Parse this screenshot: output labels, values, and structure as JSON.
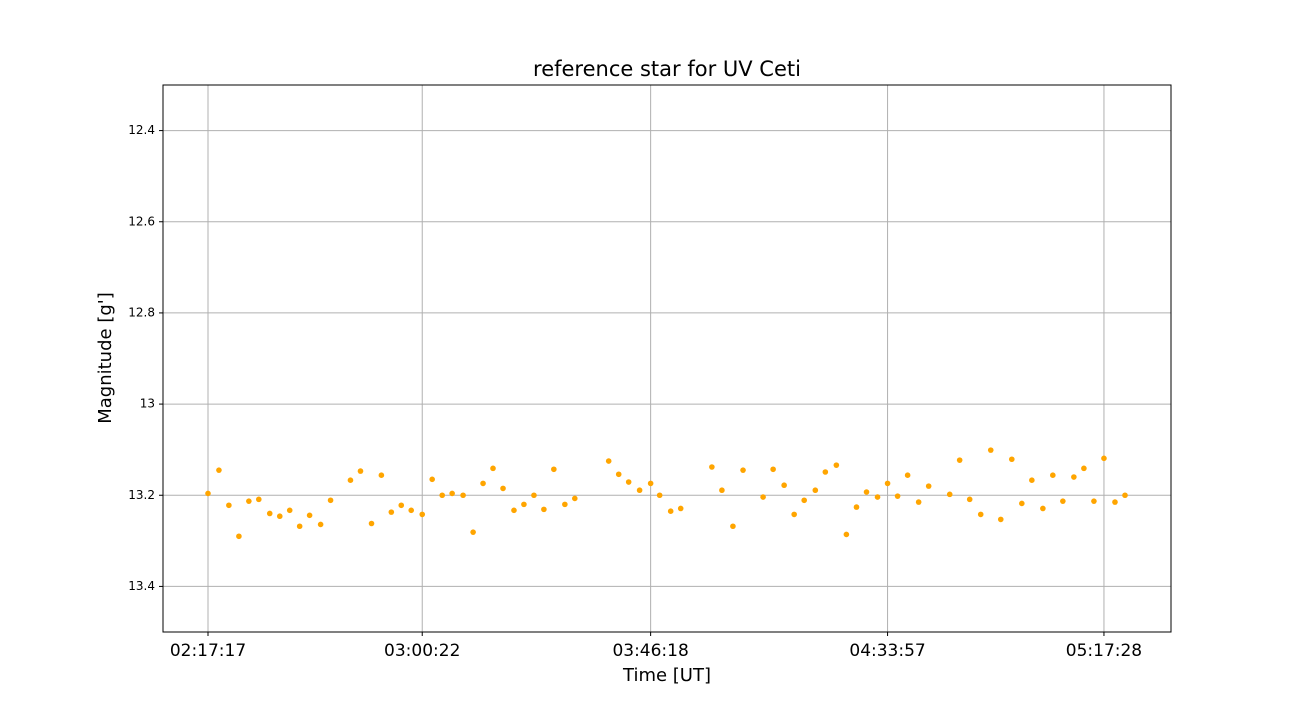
{
  "chart_data": {
    "type": "scatter",
    "title": "reference star for UV Ceti",
    "x_label": "Time [UT]",
    "y_label": "Magnitude [g']",
    "xlim": [
      7694,
      19857
    ],
    "xticks": [
      {
        "value": 8237,
        "label": "02:17:17"
      },
      {
        "value": 10822,
        "label": "03:00:22"
      },
      {
        "value": 13578,
        "label": "03:46:18"
      },
      {
        "value": 16437,
        "label": "04:33:57"
      },
      {
        "value": 19048,
        "label": "05:17:28"
      }
    ],
    "ylim": [
      12.3,
      13.5
    ],
    "y_inverted": true,
    "yticks": [
      12.4,
      12.6,
      12.8,
      13.0,
      13.2,
      13.4
    ],
    "grid": true,
    "series": [
      {
        "color": "#ffa500",
        "x": [
          8237,
          8369,
          8489,
          8610,
          8730,
          8850,
          8982,
          9103,
          9223,
          9343,
          9463,
          9596,
          9716,
          9956,
          10077,
          10210,
          10329,
          10449,
          10569,
          10689,
          10822,
          10942,
          11063,
          11183,
          11315,
          11436,
          11556,
          11676,
          11797,
          11929,
          12049,
          12170,
          12290,
          12410,
          12543,
          12663,
          13072,
          13193,
          13313,
          13445,
          13578,
          13687,
          13820,
          13941,
          14317,
          14438,
          14571,
          14693,
          14935,
          15056,
          15189,
          15310,
          15431,
          15565,
          15686,
          15819,
          15940,
          16062,
          16183,
          16316,
          16437,
          16558,
          16679,
          16812,
          16933,
          17187,
          17307,
          17428,
          17561,
          17682,
          17803,
          17936,
          18057,
          18178,
          18311,
          18431,
          18552,
          18685,
          18806,
          18927,
          19048,
          19181,
          19302
        ],
        "values": [
          13.196,
          13.145,
          13.222,
          13.29,
          13.213,
          13.209,
          13.24,
          13.246,
          13.233,
          13.268,
          13.244,
          13.264,
          13.211,
          13.167,
          13.147,
          13.262,
          13.156,
          13.237,
          13.222,
          13.233,
          13.242,
          13.165,
          13.2,
          13.196,
          13.2,
          13.281,
          13.174,
          13.141,
          13.185,
          13.233,
          13.22,
          13.2,
          13.231,
          13.143,
          13.22,
          13.207,
          13.125,
          13.154,
          13.171,
          13.189,
          13.174,
          13.2,
          13.235,
          13.229,
          13.138,
          13.189,
          13.268,
          13.145,
          13.204,
          13.143,
          13.178,
          13.242,
          13.211,
          13.189,
          13.149,
          13.134,
          13.286,
          13.226,
          13.193,
          13.204,
          13.174,
          13.202,
          13.156,
          13.215,
          13.18,
          13.198,
          13.123,
          13.209,
          13.242,
          13.101,
          13.253,
          13.121,
          13.218,
          13.167,
          13.229,
          13.156,
          13.213,
          13.16,
          13.141,
          13.213,
          13.119,
          13.215,
          13.2
        ]
      }
    ]
  }
}
